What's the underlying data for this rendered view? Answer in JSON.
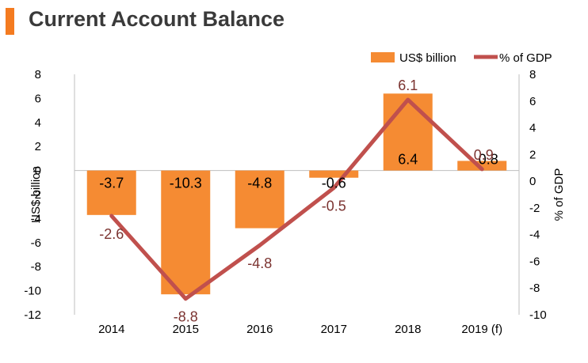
{
  "header": {
    "title": "Current Account Balance",
    "accent_color": "#f47b20"
  },
  "chart_data": {
    "type": "bar",
    "title": "Current Account Balance",
    "categories": [
      "2014",
      "2015",
      "2016",
      "2017",
      "2018",
      "2019 (f)"
    ],
    "series": [
      {
        "name": "US$ billion",
        "type": "bar",
        "axis": "left",
        "values": [
          -3.7,
          -10.3,
          -4.8,
          -0.6,
          6.4,
          0.8
        ],
        "color": "#f58b33"
      },
      {
        "name": "% of GDP",
        "type": "line",
        "axis": "right",
        "values": [
          -2.6,
          -8.8,
          -4.8,
          -0.5,
          6.1,
          0.9
        ],
        "color": "#c0504d"
      }
    ],
    "bar_labels": [
      "-3.7",
      "-10.3",
      "-4.8",
      "-0.6",
      "6.4",
      "0.8"
    ],
    "line_labels": [
      "-2.6",
      "-8.8",
      "-4.8",
      "-0.5",
      "6.1",
      "0.9"
    ],
    "ylabel": "US$ billion",
    "y2label": "% of GDP",
    "ylim": [
      -12,
      8
    ],
    "y2lim": [
      -10,
      8
    ],
    "yticks": [
      "8",
      "6",
      "4",
      "2",
      "0",
      "-2",
      "-4",
      "-6",
      "-8",
      "-10",
      "-12"
    ],
    "y2ticks": [
      "8",
      "6",
      "4",
      "2",
      "0",
      "-2",
      "-4",
      "-6",
      "-8",
      "-10"
    ],
    "legend_position": "top-right",
    "grid": false,
    "bar_label_color": "#000000",
    "line_label_color": "#7b3330"
  }
}
